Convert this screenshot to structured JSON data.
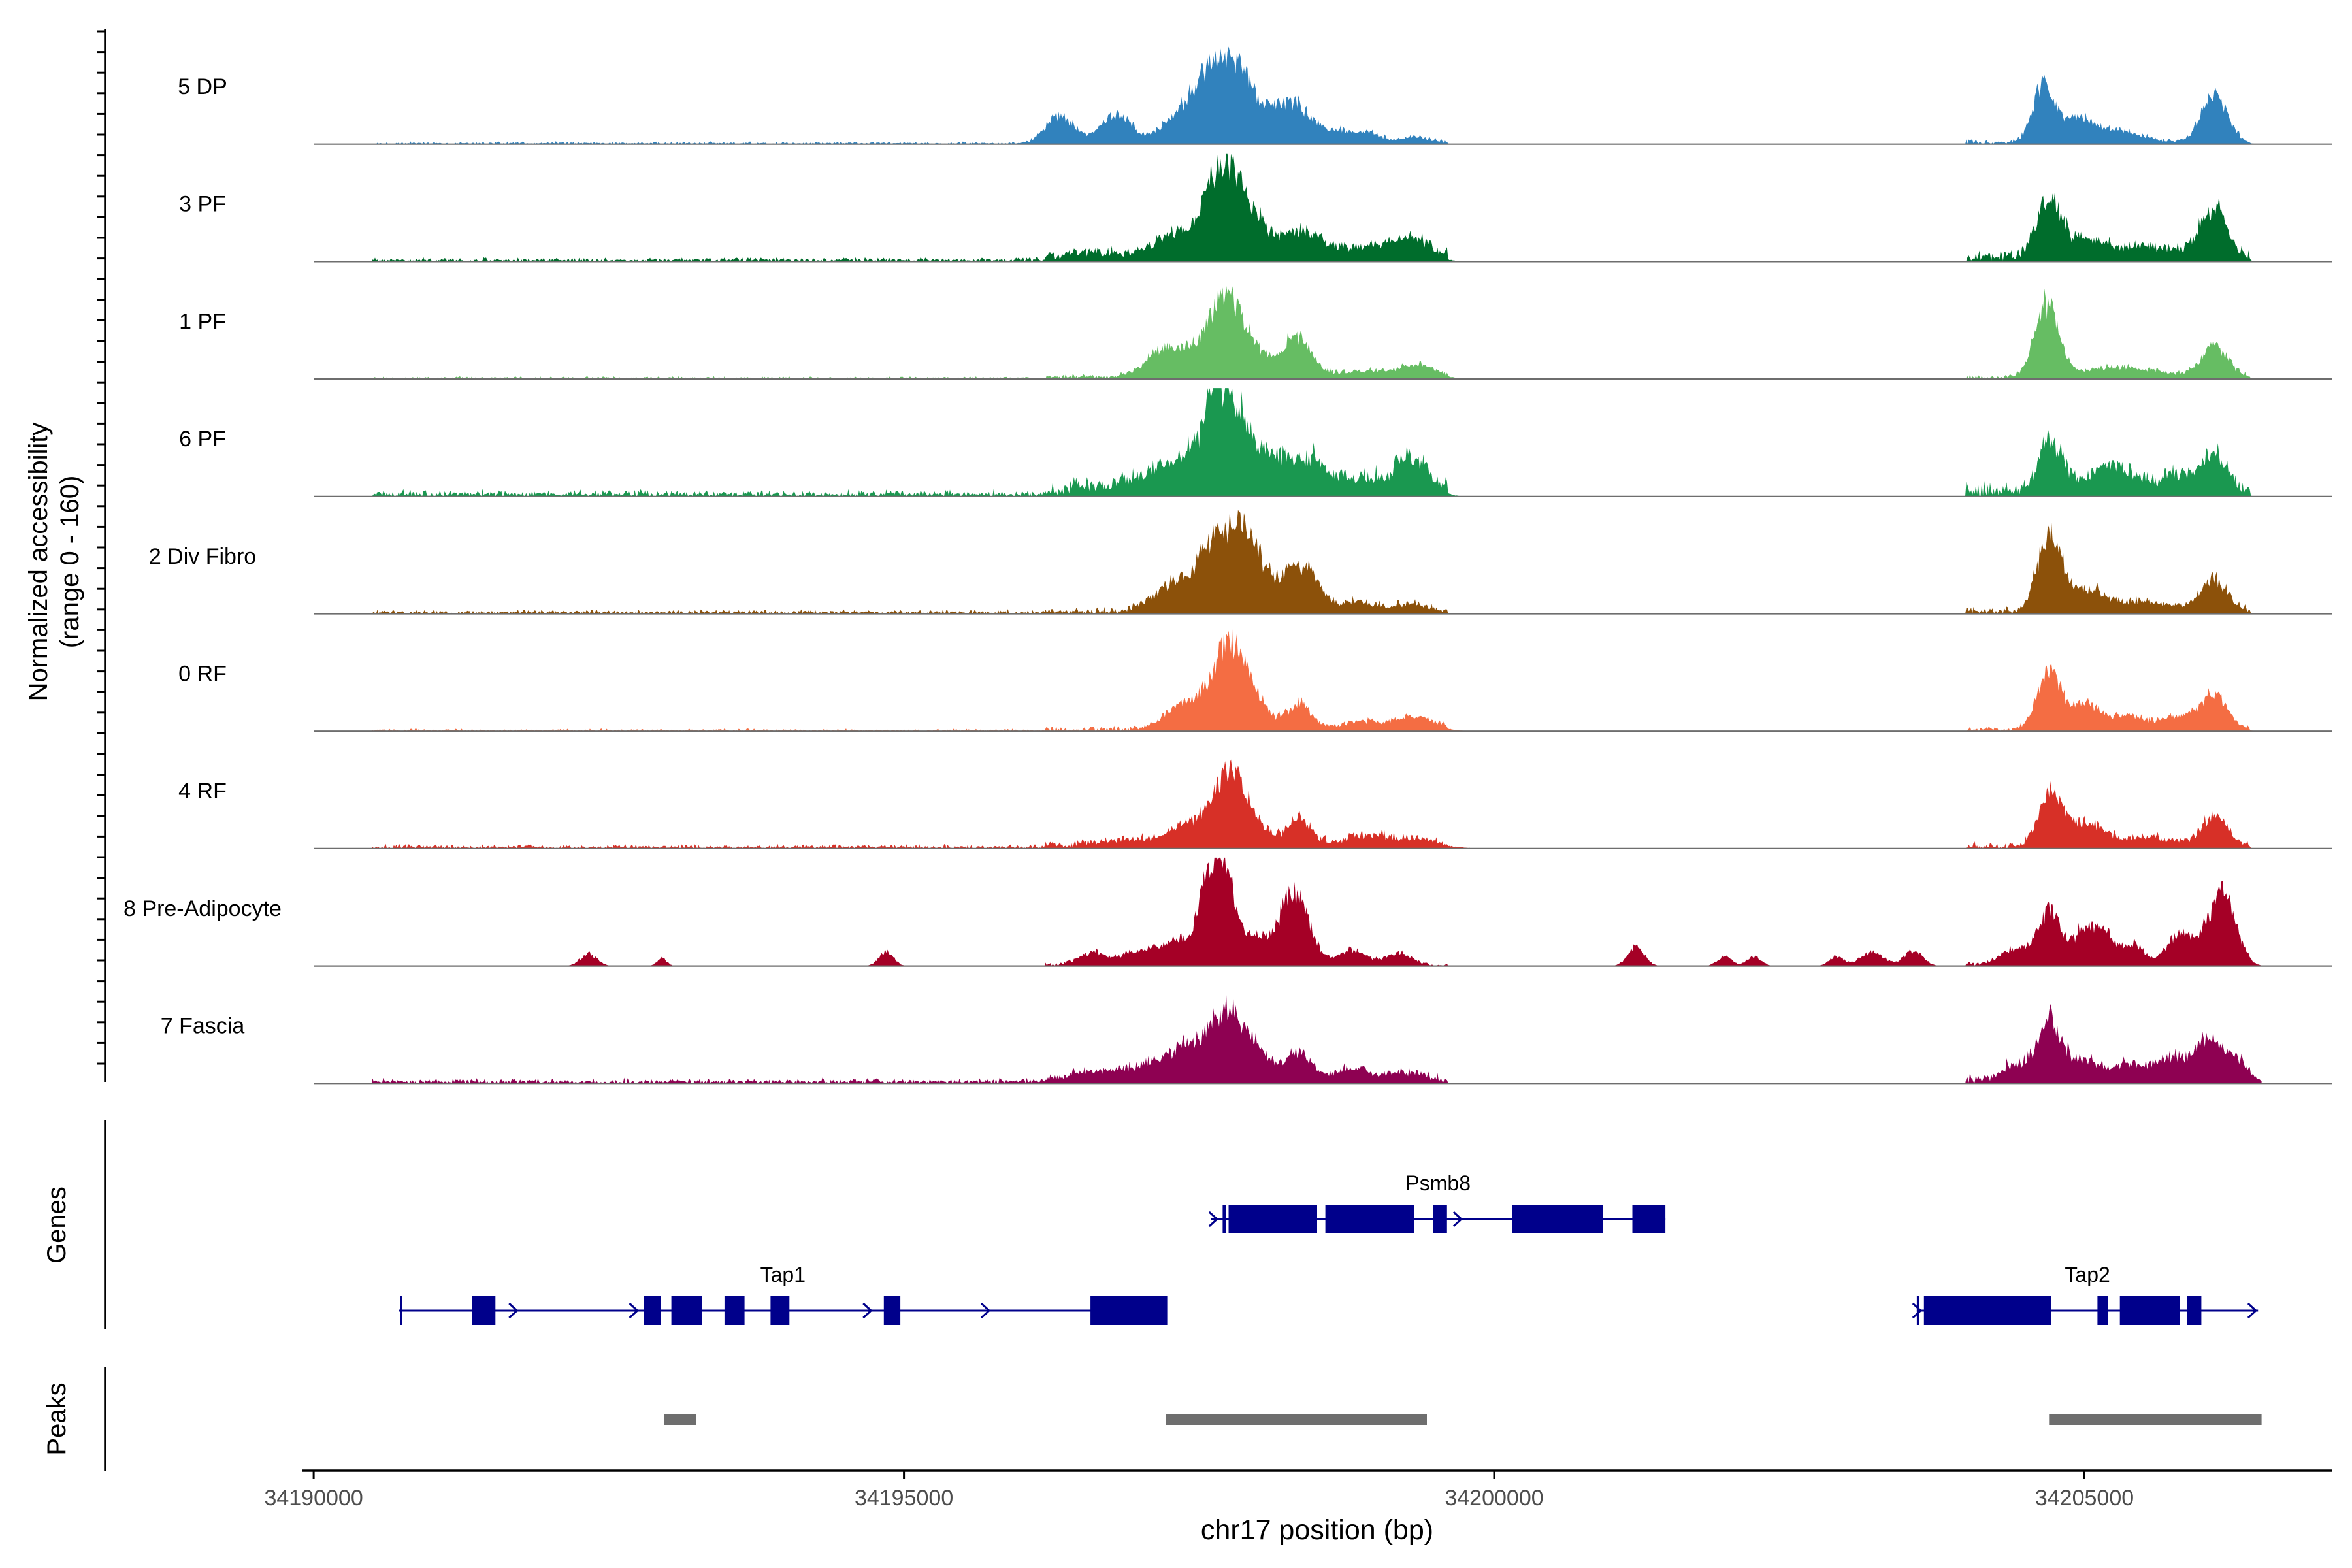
{
  "chart_data": {
    "type": "area",
    "title": "",
    "xlabel": "chr17 position (bp)",
    "ylabel_line1": "Normalized accessibility",
    "ylabel_line2": "(range 0 - 160)",
    "xlim": [
      34189900,
      34207100
    ],
    "ylim": [
      0,
      160
    ],
    "x_ticks": [
      34190000,
      34195000,
      34200000,
      34205000
    ],
    "x_tick_labels": [
      "34190000",
      "34195000",
      "34200000",
      "34205000"
    ],
    "region_start": 34190000,
    "region_end": 34206500,
    "tracks": [
      {
        "name": "5 DP",
        "color": "#3182BD",
        "peaks": [
          [
            34196320,
            40,
            120
          ],
          [
            34196800,
            40,
            130
          ],
          [
            34197300,
            25,
            150
          ],
          [
            34197720,
            130,
            220
          ],
          [
            34198300,
            55,
            160
          ],
          [
            34198700,
            16,
            110
          ],
          [
            34198950,
            14,
            110
          ],
          [
            34199350,
            8,
            120
          ],
          [
            34204650,
            85,
            90
          ],
          [
            34204930,
            30,
            130
          ],
          [
            34205250,
            18,
            220
          ],
          [
            34206100,
            72,
            110
          ]
        ],
        "noise": [
          [
            34190500,
            34196200,
            3
          ],
          [
            34196200,
            34199600,
            5
          ],
          [
            34204000,
            34206400,
            6
          ]
        ]
      },
      {
        "name": "3 PF",
        "color": "#006D2C",
        "peaks": [
          [
            34196600,
            8,
            200
          ],
          [
            34197300,
            35,
            200
          ],
          [
            34197650,
            60,
            110
          ],
          [
            34197800,
            100,
            180
          ],
          [
            34198350,
            38,
            200
          ],
          [
            34198950,
            15,
            200
          ],
          [
            34199300,
            28,
            150
          ],
          [
            34204700,
            90,
            100
          ],
          [
            34205000,
            22,
            150
          ],
          [
            34205500,
            16,
            350
          ],
          [
            34206100,
            70,
            110
          ]
        ],
        "noise": [
          [
            34190500,
            34196200,
            5
          ],
          [
            34196200,
            34199600,
            12
          ],
          [
            34204000,
            34206400,
            14
          ]
        ]
      },
      {
        "name": "1 PF",
        "color": "#66BD63",
        "peaks": [
          [
            34197250,
            45,
            180
          ],
          [
            34197720,
            120,
            150
          ],
          [
            34198000,
            25,
            120
          ],
          [
            34198330,
            60,
            120
          ],
          [
            34198900,
            10,
            200
          ],
          [
            34199350,
            18,
            150
          ],
          [
            34204680,
            105,
            100
          ],
          [
            34205300,
            14,
            350
          ],
          [
            34206100,
            48,
            110
          ]
        ],
        "noise": [
          [
            34190500,
            34196200,
            3
          ],
          [
            34196200,
            34199600,
            6
          ],
          [
            34204000,
            34206400,
            6
          ]
        ]
      },
      {
        "name": "6 PF",
        "color": "#1A9850",
        "peaks": [
          [
            34196700,
            10,
            200
          ],
          [
            34197250,
            40,
            200
          ],
          [
            34197650,
            80,
            140
          ],
          [
            34197800,
            95,
            180
          ],
          [
            34198180,
            40,
            110
          ],
          [
            34198450,
            45,
            130
          ],
          [
            34198850,
            20,
            180
          ],
          [
            34199300,
            52,
            140
          ],
          [
            34204710,
            75,
            100
          ],
          [
            34205200,
            38,
            200
          ],
          [
            34205800,
            24,
            150
          ],
          [
            34206100,
            52,
            110
          ]
        ],
        "noise": [
          [
            34190500,
            34196200,
            8
          ],
          [
            34196200,
            34199600,
            18
          ],
          [
            34204000,
            34206400,
            18
          ]
        ]
      },
      {
        "name": "2 Div Fibro",
        "color": "#8C510A",
        "peaks": [
          [
            34197300,
            40,
            180
          ],
          [
            34197650,
            90,
            150
          ],
          [
            34197900,
            95,
            140
          ],
          [
            34198200,
            30,
            120
          ],
          [
            34198400,
            58,
            120
          ],
          [
            34198850,
            16,
            150
          ],
          [
            34199300,
            12,
            120
          ],
          [
            34204700,
            110,
            100
          ],
          [
            34205000,
            30,
            160
          ],
          [
            34205500,
            14,
            300
          ],
          [
            34206100,
            45,
            110
          ]
        ],
        "noise": [
          [
            34190500,
            34196200,
            5
          ],
          [
            34196200,
            34199600,
            8
          ],
          [
            34204000,
            34206400,
            8
          ]
        ]
      },
      {
        "name": "0 RF",
        "color": "#F46D43",
        "peaks": [
          [
            34197350,
            35,
            150
          ],
          [
            34197750,
            125,
            150
          ],
          [
            34198000,
            25,
            120
          ],
          [
            34198350,
            38,
            100
          ],
          [
            34198900,
            12,
            200
          ],
          [
            34199350,
            18,
            150
          ],
          [
            34204700,
            85,
            100
          ],
          [
            34205000,
            38,
            120
          ],
          [
            34205350,
            20,
            150
          ],
          [
            34205800,
            20,
            150
          ],
          [
            34206100,
            50,
            110
          ]
        ],
        "noise": [
          [
            34190500,
            34196200,
            3
          ],
          [
            34196200,
            34199600,
            6
          ],
          [
            34204000,
            34206400,
            6
          ]
        ]
      },
      {
        "name": "4 RF",
        "color": "#D73027",
        "peaks": [
          [
            34196900,
            10,
            250
          ],
          [
            34197400,
            30,
            150
          ],
          [
            34197750,
            105,
            140
          ],
          [
            34198000,
            20,
            120
          ],
          [
            34198350,
            40,
            100
          ],
          [
            34198900,
            14,
            200
          ],
          [
            34199350,
            10,
            200
          ],
          [
            34204710,
            78,
            100
          ],
          [
            34205000,
            32,
            150
          ],
          [
            34205500,
            12,
            300
          ],
          [
            34206100,
            42,
            110
          ]
        ],
        "noise": [
          [
            34190500,
            34196200,
            5
          ],
          [
            34196200,
            34199600,
            10
          ],
          [
            34204000,
            34206400,
            8
          ]
        ]
      },
      {
        "name": "8 Pre-Adipocyte",
        "color": "#A50026",
        "peaks": [
          [
            34192330,
            18,
            70
          ],
          [
            34192950,
            12,
            40
          ],
          [
            34194850,
            22,
            60
          ],
          [
            34196600,
            18,
            120
          ],
          [
            34197000,
            22,
            150
          ],
          [
            34197350,
            35,
            150
          ],
          [
            34197560,
            75,
            80
          ],
          [
            34197700,
            150,
            90
          ],
          [
            34197950,
            40,
            110
          ],
          [
            34198300,
            105,
            130
          ],
          [
            34198800,
            22,
            120
          ],
          [
            34199200,
            18,
            100
          ],
          [
            34201200,
            28,
            70
          ],
          [
            34201950,
            14,
            60
          ],
          [
            34202200,
            14,
            60
          ],
          [
            34202900,
            14,
            60
          ],
          [
            34203200,
            20,
            100
          ],
          [
            34203550,
            22,
            80
          ],
          [
            34204400,
            22,
            120
          ],
          [
            34204700,
            80,
            100
          ],
          [
            34204980,
            45,
            80
          ],
          [
            34205150,
            52,
            80
          ],
          [
            34205400,
            30,
            100
          ],
          [
            34205800,
            42,
            100
          ],
          [
            34206050,
            40,
            110
          ],
          [
            34206200,
            85,
            100
          ]
        ],
        "noise": [
          [
            34196200,
            34199600,
            4
          ],
          [
            34204000,
            34206400,
            6
          ]
        ]
      },
      {
        "name": "7 Fascia",
        "color": "#8E0152",
        "peaks": [
          [
            34196600,
            14,
            200
          ],
          [
            34197100,
            22,
            200
          ],
          [
            34197400,
            40,
            140
          ],
          [
            34197750,
            105,
            160
          ],
          [
            34198050,
            22,
            120
          ],
          [
            34198350,
            42,
            100
          ],
          [
            34198800,
            18,
            150
          ],
          [
            34199250,
            12,
            150
          ],
          [
            34204400,
            22,
            100
          ],
          [
            34204700,
            95,
            100
          ],
          [
            34205000,
            30,
            120
          ],
          [
            34205400,
            22,
            150
          ],
          [
            34205750,
            30,
            130
          ],
          [
            34206050,
            60,
            110
          ],
          [
            34206300,
            28,
            100
          ]
        ],
        "noise": [
          [
            34190500,
            34196200,
            6
          ],
          [
            34196200,
            34199600,
            10
          ],
          [
            34204000,
            34206400,
            12
          ]
        ]
      }
    ],
    "genes": [
      {
        "name": "Psmb8",
        "row": 0,
        "start": 34197600,
        "end": 34201450,
        "exons": [
          [
            34197700,
            34197730
          ],
          [
            34197750,
            34198500
          ],
          [
            34198570,
            34199320
          ],
          [
            34199480,
            34199600
          ],
          [
            34200150,
            34200920
          ],
          [
            34201170,
            34201450
          ]
        ],
        "arrows": [
          34197630,
          34199700
        ]
      },
      {
        "name": "Tap1",
        "row": 1,
        "start": 34190720,
        "end": 34197230,
        "exons": [
          [
            34190730,
            34190750
          ],
          [
            34191340,
            34191540
          ],
          [
            34192800,
            34192940
          ],
          [
            34193030,
            34193290
          ],
          [
            34193480,
            34193650
          ],
          [
            34193870,
            34194030
          ],
          [
            34194830,
            34194970
          ],
          [
            34196580,
            34197230
          ]
        ],
        "arrows": [
          34191700,
          34192720,
          34194700,
          34195700
        ]
      },
      {
        "name": "Tap2",
        "row": 1,
        "start": 34203580,
        "end": 34206470,
        "exons": [
          [
            34203580,
            34203600
          ],
          [
            34203640,
            34204720
          ],
          [
            34205110,
            34205200
          ],
          [
            34205300,
            34205810
          ],
          [
            34205870,
            34205990
          ]
        ],
        "arrows": [
          34203590,
          34206430
        ]
      }
    ],
    "peaks": [
      [
        34192970,
        34193240
      ],
      [
        34197220,
        34199430
      ],
      [
        34204700,
        34206500
      ]
    ],
    "gene_label": "Genes",
    "peaks_label": "Peaks",
    "colors": {
      "gene": "#00008B",
      "peak": "#6E6E6E",
      "baseline": "#6E6E6E",
      "axis": "#000000"
    }
  }
}
